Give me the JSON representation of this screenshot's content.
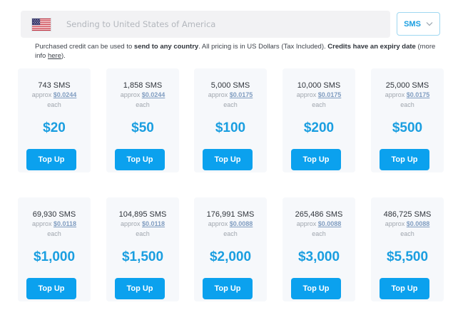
{
  "country": {
    "name": "Sending to United States of America",
    "flag_icon": "us-flag-icon"
  },
  "message_type": {
    "selected": "SMS",
    "icon": "chevron-down-icon",
    "accent": "#1a9ee0"
  },
  "info": {
    "part1": "Purchased credit can be used to ",
    "bold1": "send to any country",
    "part2": ". All pricing is in US Dollars (Tax Included). ",
    "bold2": "Credits have an expiry date",
    "part3": " (more info ",
    "link": "here",
    "part4": ")."
  },
  "packages": [
    {
      "amount": "743 SMS",
      "approx": "approx",
      "price": "$0.0244",
      "each": "each",
      "total": "$20",
      "button": "Top Up"
    },
    {
      "amount": "1,858 SMS",
      "approx": "approx",
      "price": "$0.0244",
      "each": "each",
      "total": "$50",
      "button": "Top Up"
    },
    {
      "amount": "5,000 SMS",
      "approx": "approx",
      "price": "$0.0175",
      "each": "each",
      "total": "$100",
      "button": "Top Up"
    },
    {
      "amount": "10,000 SMS",
      "approx": "approx",
      "price": "$0.0175",
      "each": "each",
      "total": "$200",
      "button": "Top Up"
    },
    {
      "amount": "25,000 SMS",
      "approx": "approx",
      "price": "$0.0175",
      "each": "each",
      "total": "$500",
      "button": "Top Up"
    },
    {
      "amount": "69,930 SMS",
      "approx": "approx",
      "price": "$0.0118",
      "each": "each",
      "total": "$1,000",
      "button": "Top Up"
    },
    {
      "amount": "104,895 SMS",
      "approx": "approx",
      "price": "$0.0118",
      "each": "each",
      "total": "$1,500",
      "button": "Top Up"
    },
    {
      "amount": "176,991 SMS",
      "approx": "approx",
      "price": "$0.0088",
      "each": "each",
      "total": "$2,000",
      "button": "Top Up"
    },
    {
      "amount": "265,486 SMS",
      "approx": "approx",
      "price": "$0.0088",
      "each": "each",
      "total": "$3,000",
      "button": "Top Up"
    },
    {
      "amount": "486,725 SMS",
      "approx": "approx",
      "price": "$0.0088",
      "each": "each",
      "total": "$5,500",
      "button": "Top Up"
    }
  ]
}
